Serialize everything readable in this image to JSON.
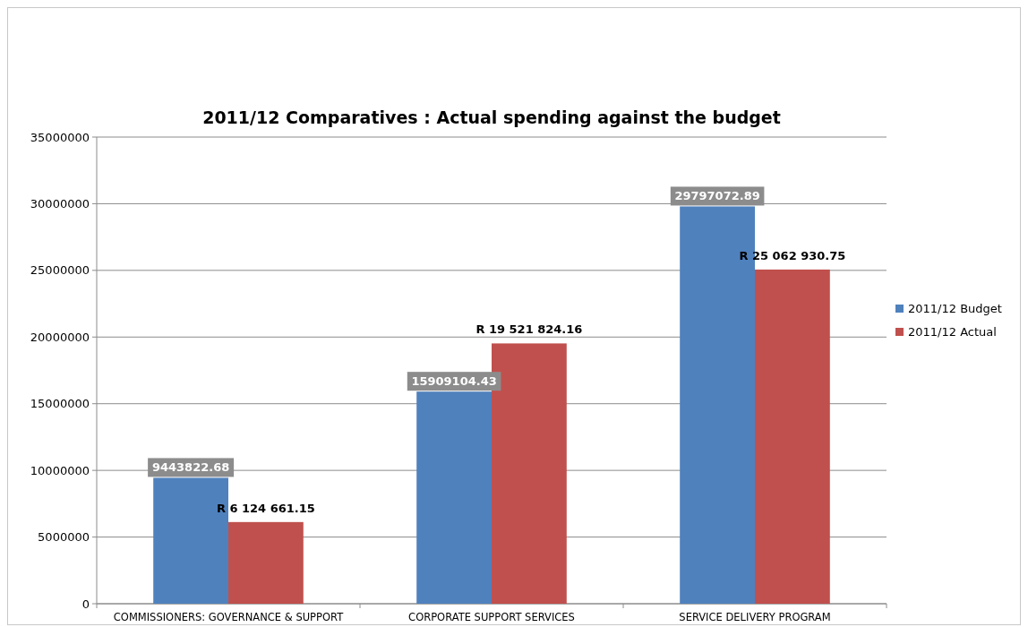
{
  "chart_data": {
    "type": "bar",
    "title": "2011/12 Comparatives : Actual spending against the budget",
    "categories": [
      "COMMISSIONERS: GOVERNANCE & SUPPORT",
      "CORPORATE SUPPORT SERVICES",
      "SERVICE DELIVERY PROGRAM"
    ],
    "series": [
      {
        "name": "2011/12 Budget",
        "color": "#4f81bd",
        "values": [
          9443822.68,
          15909104.43,
          29797072.89
        ],
        "value_labels": [
          "9443822.68",
          "15909104.43",
          "29797072.89"
        ]
      },
      {
        "name": "2011/12 Actual",
        "color": "#c0504d",
        "values": [
          6124661.15,
          19521824.16,
          25062930.75
        ],
        "value_labels": [
          "R 6 124 661.15",
          "R 19 521 824.16",
          "R 25 062 930.75"
        ]
      }
    ],
    "ylim": [
      0,
      35000000
    ],
    "yticks": [
      0,
      5000000,
      10000000,
      15000000,
      20000000,
      25000000,
      30000000,
      35000000
    ],
    "grid": "y",
    "legend": "right"
  }
}
